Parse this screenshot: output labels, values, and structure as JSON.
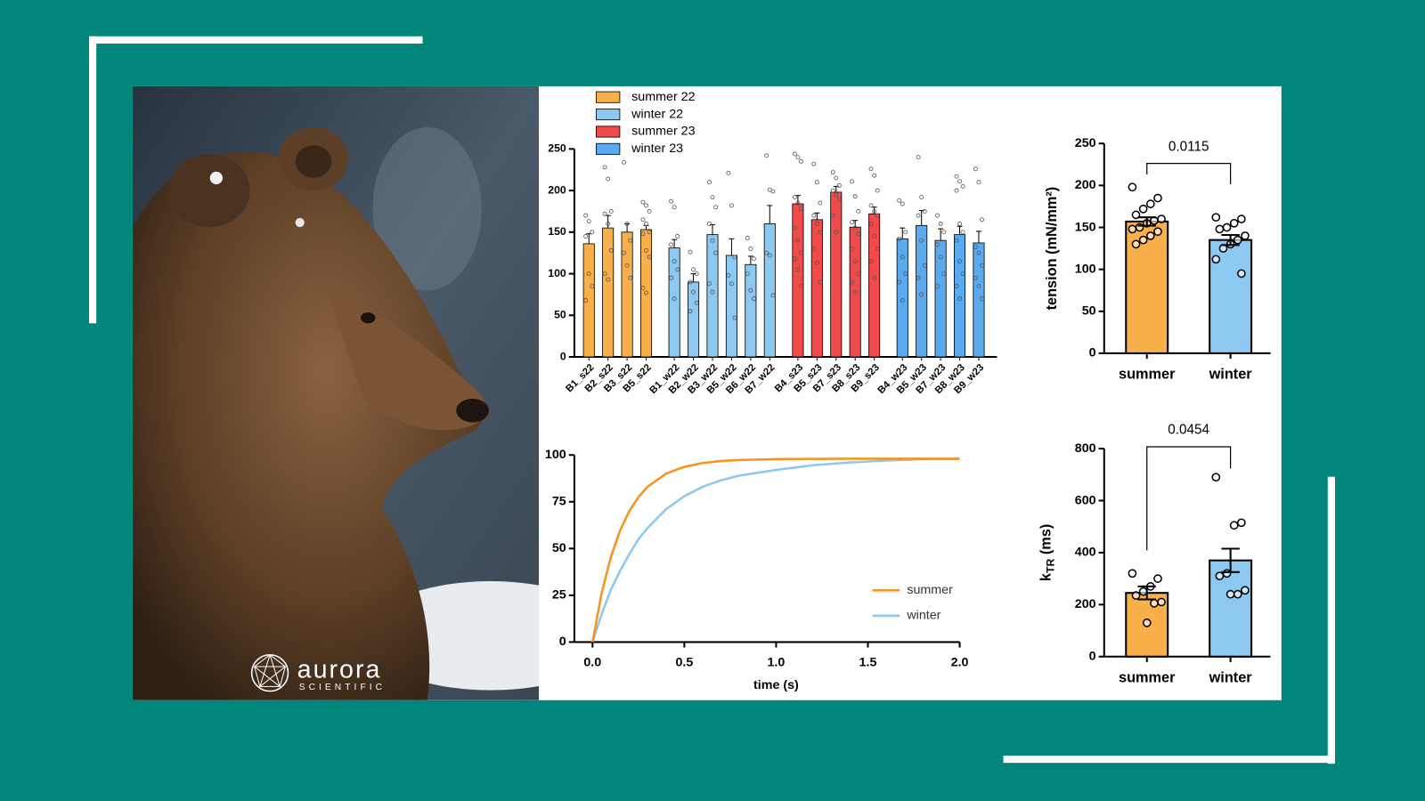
{
  "chart_data": [
    {
      "type": "bar",
      "categories": [
        "B1_s22",
        "B2_s22",
        "B3_s22",
        "B5_s22",
        "B1_w22",
        "B2_w22",
        "B3_w22",
        "B5_w22",
        "B6_w22",
        "B7_w22",
        "B4_s23",
        "B5_s23",
        "B7_s23",
        "B8_s23",
        "B9_s23",
        "B4_w23",
        "B5_w23",
        "B7_w23",
        "B8_w23",
        "B9_w23"
      ],
      "series": [
        {
          "name": "summer 22",
          "color": "#f9b04a",
          "values": [
            136,
            155,
            150,
            153,
            null,
            null,
            null,
            null,
            null,
            null,
            null,
            null,
            null,
            null,
            null,
            null,
            null,
            null,
            null,
            null
          ],
          "errors": [
            12,
            15,
            10,
            5,
            null,
            null,
            null,
            null,
            null,
            null,
            null,
            null,
            null,
            null,
            null,
            null,
            null,
            null,
            null,
            null
          ],
          "points": [
            [
              170,
              163,
              150,
              145,
              100,
              85,
              68
            ],
            [
              228,
              214,
              175,
              172,
              160,
              128,
              100,
              93
            ],
            [
              234,
              160,
              140,
              125,
              110,
              95
            ],
            [
              186,
              182,
              175,
              165,
              160,
              150,
              148,
              128,
              120,
              83,
              77
            ],
            null,
            null,
            null,
            null,
            null,
            null,
            null,
            null,
            null,
            null,
            null,
            null,
            null,
            null,
            null,
            null
          ]
        },
        {
          "name": "winter 22",
          "color": "#8cc8f0",
          "values": [
            null,
            null,
            null,
            null,
            131,
            90,
            147,
            122,
            111,
            160,
            null,
            null,
            null,
            null,
            null,
            null,
            null,
            null,
            null,
            null
          ],
          "errors": [
            null,
            null,
            null,
            null,
            10,
            10,
            12,
            20,
            10,
            22,
            null,
            null,
            null,
            null,
            null,
            null,
            null,
            null,
            null,
            null
          ],
          "points": [
            null,
            null,
            null,
            null,
            [
              187,
              180,
              145,
              135,
              115,
              105,
              95,
              70
            ],
            [
              126,
              105,
              100,
              90,
              78,
              65,
              55
            ],
            [
              210,
              192,
              180,
              160,
              140,
              125,
              88,
              78
            ],
            [
              221,
              182,
              120,
              98,
              88,
              47
            ],
            [
              143,
              130,
              118,
              100,
              80,
              70
            ],
            [
              242,
              201,
              199,
              125,
              122,
              74
            ],
            null,
            null,
            null,
            null,
            null,
            null,
            null,
            null,
            null,
            null
          ]
        },
        {
          "name": "summer 23",
          "color": "#f04a4a",
          "values": [
            null,
            null,
            null,
            null,
            null,
            null,
            null,
            null,
            null,
            null,
            184,
            165,
            198,
            156,
            172,
            null,
            null,
            null,
            null,
            null
          ],
          "errors": [
            null,
            null,
            null,
            null,
            null,
            null,
            null,
            null,
            null,
            null,
            10,
            8,
            7,
            8,
            8,
            null,
            null,
            null,
            null,
            null
          ],
          "points": [
            null,
            null,
            null,
            null,
            null,
            null,
            null,
            null,
            null,
            null,
            [
              244,
              240,
              235,
              192,
              185,
              178,
              155,
              140,
              125,
              118,
              105,
              85
            ],
            [
              232,
              210,
              185,
              170,
              160,
              150,
              130,
              113,
              90
            ],
            [
              222,
              215,
              206,
              200,
              195,
              190,
              170,
              150
            ],
            [
              211,
              193,
              175,
              162,
              155,
              148,
              130,
              115,
              100,
              90,
              78
            ],
            [
              226,
              218,
              200,
              182,
              175,
              170,
              160,
              145,
              130,
              115,
              95
            ],
            null,
            null,
            null,
            null,
            null
          ]
        },
        {
          "name": "winter 23",
          "color": "#5aaaf0",
          "values": [
            null,
            null,
            null,
            null,
            null,
            null,
            null,
            null,
            null,
            null,
            null,
            null,
            null,
            null,
            null,
            142,
            158,
            140,
            147,
            137
          ],
          "errors": [
            null,
            null,
            null,
            null,
            null,
            null,
            null,
            null,
            null,
            null,
            null,
            null,
            null,
            null,
            null,
            13,
            18,
            14,
            10,
            14
          ],
          "points": [
            null,
            null,
            null,
            null,
            null,
            null,
            null,
            null,
            null,
            null,
            null,
            null,
            null,
            null,
            null,
            [
              188,
              184,
              150,
              142,
              120,
              100,
              90,
              68
            ],
            [
              240,
              192,
              175,
              170,
              140,
              110,
              95,
              75
            ],
            [
              170,
              160,
              150,
              135,
              120,
              100,
              85
            ],
            [
              217,
              211,
              205,
              200,
              160,
              150,
              140,
              115,
              100,
              85,
              70
            ],
            [
              226,
              210,
              165,
              132,
              125,
              110,
              95,
              85,
              70
            ]
          ]
        }
      ],
      "ylim": [
        0,
        250
      ],
      "yticks": [
        0,
        50,
        100,
        150,
        200,
        250
      ],
      "legend": "top-left"
    },
    {
      "type": "line",
      "x": [
        0,
        0.05,
        0.1,
        0.15,
        0.2,
        0.25,
        0.3,
        0.4,
        0.5,
        0.6,
        0.7,
        0.8,
        1,
        1.2,
        1.4,
        1.6,
        1.8,
        2
      ],
      "series": [
        {
          "name": "summer",
          "color": "#f7931e",
          "values": [
            0,
            26.3,
            45.5,
            59.6,
            70,
            77.5,
            83,
            90,
            93.7,
            95.7,
            96.8,
            97.3,
            97.8,
            97.9,
            98,
            98,
            98,
            98
          ]
        },
        {
          "name": "winter",
          "color": "#8cc8f0",
          "values": [
            0,
            15,
            28,
            38,
            47,
            55,
            61,
            71,
            78,
            83,
            86.5,
            89,
            92,
            94.5,
            96,
            97,
            97.8,
            98
          ]
        }
      ],
      "xlabel": "time (s)",
      "xlim": [
        0,
        2
      ],
      "xticks": [
        {
          "value": 0,
          "label": "0.0"
        },
        0.5,
        {
          "value": 1,
          "label": "1.0"
        },
        1.5,
        {
          "value": 2,
          "label": "2.0"
        }
      ],
      "ylim": [
        0,
        100
      ],
      "yticks": [
        0,
        25,
        50,
        75,
        100
      ],
      "legend": "bottom-right"
    },
    {
      "type": "bar",
      "categories": [
        "summer",
        "winter"
      ],
      "values": [
        157,
        135
      ],
      "errors": [
        5,
        6
      ],
      "points": [
        [
          198,
          185,
          178,
          172,
          165,
          160,
          158,
          155,
          150,
          148,
          145,
          140,
          135,
          130
        ],
        [
          162,
          160,
          155,
          150,
          148,
          140,
          135,
          130,
          125,
          112,
          95
        ]
      ],
      "colors": [
        "#f9b04a",
        "#8cc8f0"
      ],
      "ylabel": "tension (mN/mm²)",
      "annotation": "0.0115",
      "ylim": [
        0,
        250
      ],
      "yticks": [
        0,
        50,
        100,
        150,
        200,
        250
      ]
    },
    {
      "type": "bar",
      "categories": [
        "summer",
        "winter"
      ],
      "values": [
        245,
        370
      ],
      "errors": [
        25,
        45
      ],
      "points": [
        [
          320,
          300,
          270,
          250,
          235,
          210,
          205,
          130
        ],
        [
          690,
          515,
          505,
          320,
          310,
          255,
          240,
          240
        ]
      ],
      "colors": [
        "#f9b04a",
        "#8cc8f0"
      ],
      "ylabel": {
        "symbol": "k",
        "subscript": "TR",
        "unit": " (ms)"
      },
      "annotation": "0.0454",
      "ylim": [
        0,
        800
      ],
      "yticks": [
        0,
        200,
        400,
        600,
        800
      ]
    }
  ],
  "logo": {
    "name": "aurora",
    "tagline": "SCIENTIFIC"
  }
}
